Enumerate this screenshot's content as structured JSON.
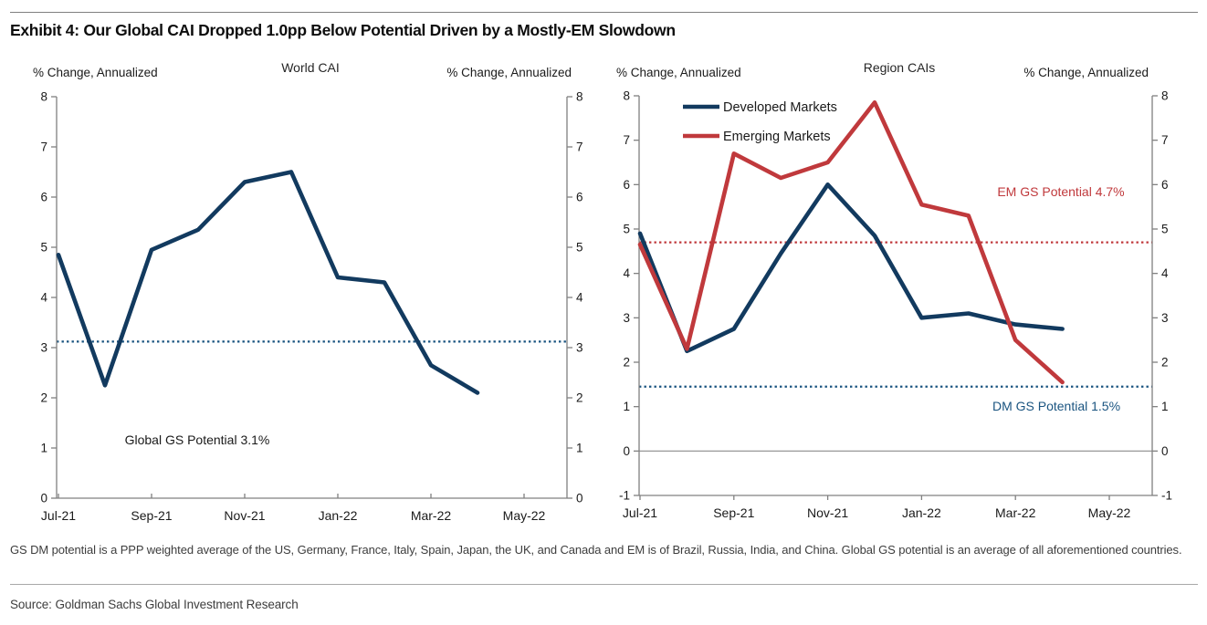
{
  "page": {
    "title": "Exhibit 4: Our Global CAI Dropped 1.0pp Below Potential Driven by a Mostly-EM Slowdown",
    "footnote": "GS DM potential is a PPP weighted average of the US, Germany, France, Italy, Spain, Japan, the UK, and Canada and EM is of Brazil, Russia, India, and China. Global GS potential is an average of all aforementioned countries.",
    "source": "Source: Goldman Sachs Global Investment Research"
  },
  "colors": {
    "navy": "#123a5f",
    "red": "#c0393c",
    "dotted_navy": "#1a5480",
    "dotted_red": "#c0393c",
    "axis": "#808080",
    "zero_line": "#8c8c8c",
    "tick_text": "#1a1a1a",
    "annotation_dark": "#1a1a1a"
  },
  "chart_data": [
    {
      "type": "line",
      "title": "World CAI",
      "ylabel_left": "% Change, Annualized",
      "ylabel_right": "% Change, Annualized",
      "x": [
        "Jul-21",
        "Aug-21",
        "Sep-21",
        "Oct-21",
        "Nov-21",
        "Dec-21",
        "Jan-22",
        "Feb-22",
        "Mar-22",
        "Apr-22"
      ],
      "x_axis_ticks": [
        "Jul-21",
        "Sep-21",
        "Nov-21",
        "Jan-22",
        "Mar-22",
        "May-22"
      ],
      "ylim": [
        0,
        8
      ],
      "yticks": [
        0,
        1,
        2,
        3,
        4,
        5,
        6,
        7,
        8
      ],
      "grid": false,
      "legend": false,
      "zero_line": false,
      "series": [
        {
          "name": "World CAI",
          "color": "#123a5f",
          "values": [
            4.85,
            2.25,
            4.95,
            5.35,
            6.3,
            6.5,
            4.4,
            4.3,
            2.65,
            2.1
          ]
        }
      ],
      "reference_lines": [
        {
          "label": "Global GS Potential 3.1%",
          "value": 3.12,
          "color": "#1a5480",
          "label_color": "#1a1a1a"
        }
      ]
    },
    {
      "type": "line",
      "title": "Region CAIs",
      "ylabel_left": "% Change, Annualized",
      "ylabel_right": "% Change, Annualized",
      "x": [
        "Jul-21",
        "Aug-21",
        "Sep-21",
        "Oct-21",
        "Nov-21",
        "Dec-21",
        "Jan-22",
        "Feb-22",
        "Mar-22",
        "Apr-22"
      ],
      "x_axis_ticks": [
        "Jul-21",
        "Sep-21",
        "Nov-21",
        "Jan-22",
        "Mar-22",
        "May-22"
      ],
      "ylim": [
        -1,
        8
      ],
      "yticks": [
        -1,
        0,
        1,
        2,
        3,
        4,
        5,
        6,
        7,
        8
      ],
      "grid": false,
      "legend": true,
      "legend_position": "top-left",
      "zero_line": true,
      "series": [
        {
          "name": "Developed Markets",
          "color": "#123a5f",
          "values": [
            4.9,
            2.25,
            2.75,
            4.45,
            6.0,
            4.85,
            3.0,
            3.1,
            2.85,
            2.75
          ]
        },
        {
          "name": "Emerging Markets",
          "color": "#c0393c",
          "values": [
            4.65,
            2.3,
            6.7,
            6.15,
            6.5,
            7.85,
            5.55,
            5.3,
            2.5,
            1.55
          ]
        }
      ],
      "reference_lines": [
        {
          "label": "EM GS Potential 4.7%",
          "value": 4.7,
          "color": "#c0393c",
          "label_color": "#c0393c"
        },
        {
          "label": "DM GS Potential 1.5%",
          "value": 1.45,
          "color": "#1a5480",
          "label_color": "#1a5480"
        }
      ]
    }
  ]
}
